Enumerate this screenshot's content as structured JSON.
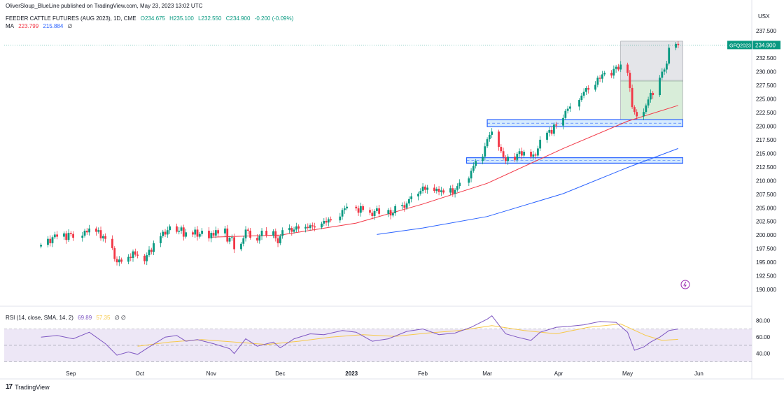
{
  "header": {
    "published": "OliverSloup_BlueLine published on TradingView.com, May 23, 2023 13:02 UTC"
  },
  "legend": {
    "symbol": "FEEDER CATTLE FUTURES (AUG 2023), 1D, CME",
    "open": "O234.675",
    "high": "H235.100",
    "low": "L232.550",
    "close": "C234.900",
    "change": "-0.200 (-0.09%)",
    "ma_label": "MA",
    "ma_val1": "223.799",
    "ma_val2": "215.884",
    "ma_eye": "∅"
  },
  "rsi_legend": {
    "label": "RSI (14, close, SMA, 14, 2)",
    "val1": "69.89",
    "val2": "57.35",
    "extra": "∅ ∅"
  },
  "footer": {
    "brand": "TradingView"
  },
  "colors": {
    "up": "#089981",
    "down": "#f23645",
    "ma_fast": "#f23645",
    "ma_slow": "#2962ff",
    "rsi": "#7e57c2",
    "rsi_ma": "#f7c948",
    "rsi_band": "#ede7f6",
    "zone_blue": "#2962ff",
    "box_gray": "#d9dadf",
    "box_green": "#c8e6c9"
  },
  "chart_data": {
    "type": "candlestick",
    "currency": "USX",
    "symbol_tag": "GFQ2023",
    "last_price": "234.900",
    "yticks": [
      "237.500",
      "235.000",
      "232.500",
      "230.000",
      "227.500",
      "225.000",
      "222.500",
      "220.000",
      "217.500",
      "215.000",
      "212.500",
      "210.000",
      "207.500",
      "205.000",
      "202.500",
      "200.000",
      "197.500",
      "195.000",
      "192.500",
      "190.000"
    ],
    "ylim": [
      189.5,
      238.8
    ],
    "xticks": [
      "Sep",
      "Oct",
      "Nov",
      "Dec",
      "2023",
      "Feb",
      "Mar",
      "Apr",
      "May",
      "Jun"
    ],
    "xtick_dates": [
      "2022-09-01",
      "2022-10-01",
      "2022-11-01",
      "2022-12-01",
      "2023-01-01",
      "2023-02-01",
      "2023-03-01",
      "2023-04-01",
      "2023-05-01",
      "2023-06-01"
    ],
    "closes": [
      [
        "2022-08-19",
        198.2
      ],
      [
        "2022-08-22",
        199.3
      ],
      [
        "2022-08-23",
        198.5
      ],
      [
        "2022-08-24",
        199.6
      ],
      [
        "2022-08-25",
        200.1
      ],
      [
        "2022-08-26",
        199.7
      ],
      [
        "2022-08-29",
        200.3
      ],
      [
        "2022-08-30",
        199.1
      ],
      [
        "2022-08-31",
        200.4
      ],
      [
        "2022-09-01",
        200.2
      ],
      [
        "2022-09-02",
        199.5
      ],
      [
        "2022-09-06",
        199.9
      ],
      [
        "2022-09-07",
        200.8
      ],
      [
        "2022-09-08",
        200.5
      ],
      [
        "2022-09-09",
        201.2
      ],
      [
        "2022-09-12",
        200.6
      ],
      [
        "2022-09-13",
        200.9
      ],
      [
        "2022-09-14",
        199.4
      ],
      [
        "2022-09-15",
        199.8
      ],
      [
        "2022-09-16",
        199.3
      ],
      [
        "2022-09-19",
        197.6
      ],
      [
        "2022-09-20",
        195.6
      ],
      [
        "2022-09-21",
        195.0
      ],
      [
        "2022-09-22",
        195.5
      ],
      [
        "2022-09-23",
        195.1
      ],
      [
        "2022-09-26",
        196.0
      ],
      [
        "2022-09-27",
        195.8
      ],
      [
        "2022-09-28",
        197.0
      ],
      [
        "2022-09-29",
        196.4
      ],
      [
        "2022-09-30",
        196.2
      ],
      [
        "2022-10-03",
        195.2
      ],
      [
        "2022-10-04",
        196.3
      ],
      [
        "2022-10-05",
        197.3
      ],
      [
        "2022-10-06",
        196.9
      ],
      [
        "2022-10-07",
        198.5
      ],
      [
        "2022-10-10",
        199.8
      ],
      [
        "2022-10-11",
        200.6
      ],
      [
        "2022-10-12",
        200.1
      ],
      [
        "2022-10-13",
        200.9
      ],
      [
        "2022-10-14",
        201.6
      ],
      [
        "2022-10-17",
        200.6
      ],
      [
        "2022-10-18",
        200.8
      ],
      [
        "2022-10-19",
        201.4
      ],
      [
        "2022-10-20",
        199.7
      ],
      [
        "2022-10-21",
        200.5
      ],
      [
        "2022-10-24",
        200.1
      ],
      [
        "2022-10-25",
        201.0
      ],
      [
        "2022-10-26",
        199.7
      ],
      [
        "2022-10-27",
        200.2
      ],
      [
        "2022-10-28",
        200.8
      ],
      [
        "2022-10-31",
        199.4
      ],
      [
        "2022-11-01",
        200.4
      ],
      [
        "2022-11-02",
        199.9
      ],
      [
        "2022-11-03",
        200.9
      ],
      [
        "2022-11-04",
        200.3
      ],
      [
        "2022-11-07",
        201.2
      ],
      [
        "2022-11-08",
        198.8
      ],
      [
        "2022-11-09",
        199.5
      ],
      [
        "2022-11-10",
        199.6
      ],
      [
        "2022-11-11",
        197.4
      ],
      [
        "2022-11-14",
        198.4
      ],
      [
        "2022-11-15",
        199.4
      ],
      [
        "2022-11-16",
        201.0
      ],
      [
        "2022-11-17",
        200.8
      ],
      [
        "2022-11-18",
        199.5
      ],
      [
        "2022-11-21",
        199.0
      ],
      [
        "2022-11-22",
        199.8
      ],
      [
        "2022-11-23",
        200.8
      ],
      [
        "2022-11-25",
        199.9
      ],
      [
        "2022-11-28",
        200.7
      ],
      [
        "2022-11-29",
        199.4
      ],
      [
        "2022-11-30",
        198.5
      ],
      [
        "2022-12-01",
        199.8
      ],
      [
        "2022-12-02",
        200.9
      ],
      [
        "2022-12-05",
        201.3
      ],
      [
        "2022-12-06",
        200.6
      ],
      [
        "2022-12-07",
        201.0
      ],
      [
        "2022-12-08",
        201.6
      ],
      [
        "2022-12-09",
        201.2
      ],
      [
        "2022-12-12",
        201.5
      ],
      [
        "2022-12-13",
        201.3
      ],
      [
        "2022-12-14",
        201.8
      ],
      [
        "2022-12-15",
        201.6
      ],
      [
        "2022-12-16",
        201.4
      ],
      [
        "2022-12-19",
        202.1
      ],
      [
        "2022-12-20",
        202.6
      ],
      [
        "2022-12-21",
        202.3
      ],
      [
        "2022-12-22",
        202.9
      ],
      [
        "2022-12-23",
        202.7
      ],
      [
        "2022-12-27",
        203.4
      ],
      [
        "2022-12-28",
        204.6
      ],
      [
        "2022-12-29",
        204.9
      ],
      [
        "2022-12-30",
        205.2
      ],
      [
        "2023-01-03",
        204.9
      ],
      [
        "2023-01-04",
        204.1
      ],
      [
        "2023-01-05",
        205.3
      ],
      [
        "2023-01-06",
        204.6
      ],
      [
        "2023-01-09",
        204.1
      ],
      [
        "2023-01-10",
        203.5
      ],
      [
        "2023-01-11",
        204.4
      ],
      [
        "2023-01-12",
        204.9
      ],
      [
        "2023-01-13",
        203.9
      ],
      [
        "2023-01-17",
        204.6
      ],
      [
        "2023-01-18",
        203.6
      ],
      [
        "2023-01-19",
        204.0
      ],
      [
        "2023-01-20",
        205.3
      ],
      [
        "2023-01-23",
        205.5
      ],
      [
        "2023-01-24",
        205.0
      ],
      [
        "2023-01-25",
        205.8
      ],
      [
        "2023-01-26",
        206.6
      ],
      [
        "2023-01-27",
        207.1
      ],
      [
        "2023-01-30",
        207.6
      ],
      [
        "2023-01-31",
        208.1
      ],
      [
        "2023-02-01",
        208.9
      ],
      [
        "2023-02-02",
        208.3
      ],
      [
        "2023-02-03",
        208.7
      ],
      [
        "2023-02-06",
        208.1
      ],
      [
        "2023-02-07",
        208.5
      ],
      [
        "2023-02-08",
        207.9
      ],
      [
        "2023-02-09",
        208.2
      ],
      [
        "2023-02-10",
        207.8
      ],
      [
        "2023-02-13",
        208.6
      ],
      [
        "2023-02-14",
        207.6
      ],
      [
        "2023-02-15",
        208.3
      ],
      [
        "2023-02-16",
        209.0
      ],
      [
        "2023-02-17",
        209.6
      ],
      [
        "2023-02-21",
        210.4
      ],
      [
        "2023-02-22",
        211.8
      ],
      [
        "2023-02-23",
        212.7
      ],
      [
        "2023-02-24",
        213.6
      ],
      [
        "2023-02-27",
        214.4
      ],
      [
        "2023-02-28",
        216.3
      ],
      [
        "2023-03-01",
        217.6
      ],
      [
        "2023-03-02",
        218.4
      ],
      [
        "2023-03-03",
        219.0
      ],
      [
        "2023-03-06",
        216.2
      ],
      [
        "2023-03-07",
        215.4
      ],
      [
        "2023-03-08",
        214.3
      ],
      [
        "2023-03-09",
        213.6
      ],
      [
        "2023-03-10",
        214.4
      ],
      [
        "2023-03-13",
        213.8
      ],
      [
        "2023-03-14",
        214.9
      ],
      [
        "2023-03-15",
        215.4
      ],
      [
        "2023-03-16",
        214.6
      ],
      [
        "2023-03-17",
        215.3
      ],
      [
        "2023-03-20",
        214.4
      ],
      [
        "2023-03-21",
        214.8
      ],
      [
        "2023-03-22",
        214.6
      ],
      [
        "2023-03-23",
        215.9
      ],
      [
        "2023-03-24",
        217.5
      ],
      [
        "2023-03-27",
        218.8
      ],
      [
        "2023-03-28",
        219.3
      ],
      [
        "2023-03-29",
        218.6
      ],
      [
        "2023-03-30",
        220.3
      ],
      [
        "2023-03-31",
        220.1
      ],
      [
        "2023-04-03",
        221.5
      ],
      [
        "2023-04-04",
        222.8
      ],
      [
        "2023-04-05",
        223.2
      ],
      [
        "2023-04-06",
        223.6
      ],
      [
        "2023-04-10",
        224.8
      ],
      [
        "2023-04-11",
        225.6
      ],
      [
        "2023-04-12",
        226.3
      ],
      [
        "2023-04-13",
        227.0
      ],
      [
        "2023-04-14",
        226.7
      ],
      [
        "2023-04-17",
        227.6
      ],
      [
        "2023-04-18",
        228.9
      ],
      [
        "2023-04-19",
        228.7
      ],
      [
        "2023-04-20",
        229.5
      ],
      [
        "2023-04-21",
        229.8
      ],
      [
        "2023-04-24",
        229.3
      ],
      [
        "2023-04-25",
        230.5
      ],
      [
        "2023-04-26",
        230.9
      ],
      [
        "2023-04-27",
        230.4
      ],
      [
        "2023-04-28",
        231.3
      ],
      [
        "2023-05-01",
        229.8
      ],
      [
        "2023-05-02",
        227.0
      ],
      [
        "2023-05-03",
        223.5
      ],
      [
        "2023-05-04",
        222.6
      ],
      [
        "2023-05-05",
        221.8
      ],
      [
        "2023-05-08",
        222.6
      ],
      [
        "2023-05-09",
        223.8
      ],
      [
        "2023-05-10",
        224.9
      ],
      [
        "2023-05-11",
        226.1
      ],
      [
        "2023-05-12",
        225.7
      ],
      [
        "2023-05-15",
        228.9
      ],
      [
        "2023-05-16",
        230.0
      ],
      [
        "2023-05-17",
        230.4
      ],
      [
        "2023-05-18",
        231.5
      ],
      [
        "2023-05-19",
        234.4
      ],
      [
        "2023-05-22",
        235.1
      ],
      [
        "2023-05-23",
        234.9
      ]
    ],
    "ma_fast_points": [
      [
        "2022-11-01",
        199.6
      ],
      [
        "2022-12-01",
        200.0
      ],
      [
        "2023-01-03",
        202.2
      ],
      [
        "2023-02-01",
        205.7
      ],
      [
        "2023-03-01",
        209.5
      ],
      [
        "2023-04-03",
        215.9
      ],
      [
        "2023-05-01",
        220.9
      ],
      [
        "2023-05-23",
        223.8
      ]
    ],
    "ma_slow_points": [
      [
        "2023-01-12",
        200.1
      ],
      [
        "2023-02-01",
        201.3
      ],
      [
        "2023-03-01",
        203.4
      ],
      [
        "2023-04-03",
        207.6
      ],
      [
        "2023-05-01",
        212.4
      ],
      [
        "2023-05-23",
        215.9
      ]
    ],
    "zones": [
      {
        "from": "2023-03-01",
        "to": "2023-05-25",
        "low": 219.9,
        "high": 221.2
      },
      {
        "from": "2023-02-20",
        "to": "2023-05-25",
        "low": 213.2,
        "high": 214.2
      }
    ],
    "box_gray": {
      "from": "2023-04-28",
      "to": "2023-05-25",
      "low": 228.2,
      "high": 235.6
    },
    "box_green": {
      "from": "2023-04-28",
      "to": "2023-05-25",
      "low": 221.2,
      "high": 228.4
    },
    "rsi": {
      "yticks": [
        "80.00",
        "60.00",
        "40.00"
      ],
      "ylim": [
        27,
        90
      ],
      "upper": 70,
      "mid": 50,
      "lower": 30,
      "points": [
        [
          "2022-08-19",
          60
        ],
        [
          "2022-08-26",
          62
        ],
        [
          "2022-09-02",
          58
        ],
        [
          "2022-09-09",
          66
        ],
        [
          "2022-09-16",
          52
        ],
        [
          "2022-09-21",
          38
        ],
        [
          "2022-09-26",
          42
        ],
        [
          "2022-09-30",
          39
        ],
        [
          "2022-10-05",
          48
        ],
        [
          "2022-10-12",
          60
        ],
        [
          "2022-10-17",
          62
        ],
        [
          "2022-10-21",
          55
        ],
        [
          "2022-10-26",
          57
        ],
        [
          "2022-11-02",
          52
        ],
        [
          "2022-11-09",
          46
        ],
        [
          "2022-11-11",
          40
        ],
        [
          "2022-11-16",
          58
        ],
        [
          "2022-11-21",
          49
        ],
        [
          "2022-11-28",
          54
        ],
        [
          "2022-12-01",
          47
        ],
        [
          "2022-12-07",
          58
        ],
        [
          "2022-12-14",
          64
        ],
        [
          "2022-12-20",
          63
        ],
        [
          "2022-12-28",
          68
        ],
        [
          "2023-01-03",
          66
        ],
        [
          "2023-01-10",
          55
        ],
        [
          "2023-01-17",
          58
        ],
        [
          "2023-01-25",
          67
        ],
        [
          "2023-02-01",
          70
        ],
        [
          "2023-02-08",
          63
        ],
        [
          "2023-02-15",
          65
        ],
        [
          "2023-02-22",
          72
        ],
        [
          "2023-03-01",
          82
        ],
        [
          "2023-03-03",
          86
        ],
        [
          "2023-03-09",
          64
        ],
        [
          "2023-03-14",
          60
        ],
        [
          "2023-03-20",
          56
        ],
        [
          "2023-03-24",
          66
        ],
        [
          "2023-03-31",
          72
        ],
        [
          "2023-04-05",
          73
        ],
        [
          "2023-04-12",
          75
        ],
        [
          "2023-04-19",
          79
        ],
        [
          "2023-04-26",
          78
        ],
        [
          "2023-05-01",
          66
        ],
        [
          "2023-05-04",
          44
        ],
        [
          "2023-05-08",
          48
        ],
        [
          "2023-05-11",
          54
        ],
        [
          "2023-05-15",
          60
        ],
        [
          "2023-05-19",
          68
        ],
        [
          "2023-05-23",
          69.9
        ]
      ],
      "ma_points": [
        [
          "2022-09-30",
          49
        ],
        [
          "2022-10-14",
          54
        ],
        [
          "2022-10-28",
          57
        ],
        [
          "2022-11-11",
          54
        ],
        [
          "2022-11-25",
          51
        ],
        [
          "2022-12-09",
          55
        ],
        [
          "2022-12-23",
          60
        ],
        [
          "2023-01-06",
          63
        ],
        [
          "2023-01-20",
          61
        ],
        [
          "2023-02-03",
          65
        ],
        [
          "2023-02-17",
          68
        ],
        [
          "2023-03-03",
          74
        ],
        [
          "2023-03-17",
          68
        ],
        [
          "2023-03-31",
          64
        ],
        [
          "2023-04-14",
          72
        ],
        [
          "2023-04-28",
          76
        ],
        [
          "2023-05-09",
          62
        ],
        [
          "2023-05-16",
          56
        ],
        [
          "2023-05-23",
          57.35
        ]
      ]
    }
  }
}
